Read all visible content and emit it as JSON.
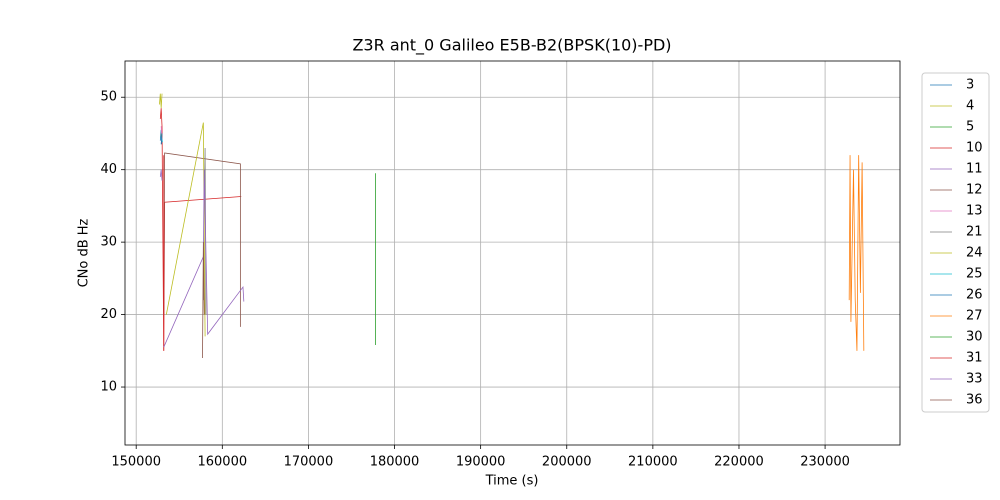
{
  "chart_data": {
    "type": "line",
    "title": "Z3R ant_0 Galileo E5B-B2(BPSK(10)-PD)",
    "x_label": "Time (s)",
    "y_label": "CNo dB Hz",
    "xlim": [
      148700,
      238700
    ],
    "ylim": [
      2,
      55
    ],
    "xticks": [
      150000,
      160000,
      170000,
      180000,
      190000,
      200000,
      210000,
      220000,
      230000
    ],
    "yticks": [
      10,
      20,
      30,
      40,
      50
    ],
    "grid": true,
    "legend": "outside-right",
    "series": [
      {
        "name": "3",
        "color": "#1f77b4",
        "x": [
          152800,
          152900,
          153000
        ],
        "values": [
          44,
          45.5,
          43.5
        ]
      },
      {
        "name": "4",
        "color": "#bcbd22",
        "x": [
          152700,
          152800,
          152900,
          153000
        ],
        "values": [
          49,
          50.5,
          48.5,
          50.5
        ]
      },
      {
        "name": "5",
        "color": "#2ca02c",
        "x": [
          152900,
          153000
        ],
        "values": [
          45,
          44
        ]
      },
      {
        "name": "10",
        "color": "#d62728",
        "x": [
          152800,
          152900,
          153000,
          153200,
          153300,
          162200
        ],
        "values": [
          47,
          48.5,
          46,
          15,
          35.5,
          36.3
        ]
      },
      {
        "name": "11",
        "color": "#9467bd",
        "x": [
          152800,
          152900,
          153000
        ],
        "values": [
          39,
          40,
          38.5
        ]
      },
      {
        "name": "12",
        "color": "#8c564b",
        "x": [
          153200,
          153300,
          162100,
          162100
        ],
        "values": [
          20,
          42.3,
          40.8,
          18.3
        ]
      },
      {
        "name": "13",
        "color": "#e377c2",
        "x": [
          152900,
          153000
        ],
        "values": [
          46,
          44
        ]
      },
      {
        "name": "21",
        "color": "#7f7f7f",
        "x": [
          157800,
          158000,
          158100
        ],
        "values": [
          22,
          43,
          20
        ]
      },
      {
        "name": "24",
        "color": "#bcbd22",
        "x": [
          153500,
          157800,
          158000
        ],
        "values": [
          20,
          46.5,
          17
        ]
      },
      {
        "name": "25",
        "color": "#17becf",
        "x": [
          152950,
          153050
        ],
        "values": [
          44.5,
          43.8
        ]
      },
      {
        "name": "26",
        "color": "#1f77b4",
        "x": [
          152900,
          153000
        ],
        "values": [
          43.5,
          45
        ]
      },
      {
        "name": "27",
        "color": "#ff7f0e",
        "x": [
          232800,
          232900,
          233000,
          233300,
          233500,
          233700,
          233900,
          234100,
          234300,
          234500
        ],
        "values": [
          22,
          42,
          19,
          40,
          22,
          15,
          42,
          23,
          41,
          15
        ]
      },
      {
        "name": "30",
        "color": "#2ca02c",
        "x": [
          177800,
          177800
        ],
        "values": [
          39.5,
          15.8
        ]
      },
      {
        "name": "31",
        "color": "#d62728",
        "x": [
          153200,
          153200
        ],
        "values": [
          42,
          15
        ]
      },
      {
        "name": "33",
        "color": "#9467bd",
        "x": [
          153200,
          157800,
          157900,
          158300,
          162400,
          162500
        ],
        "values": [
          15.5,
          28,
          40,
          17.3,
          23.8,
          21.8
        ]
      },
      {
        "name": "36",
        "color": "#8c564b",
        "x": [
          157700,
          157800,
          157900
        ],
        "values": [
          14,
          30,
          20
        ]
      }
    ]
  }
}
